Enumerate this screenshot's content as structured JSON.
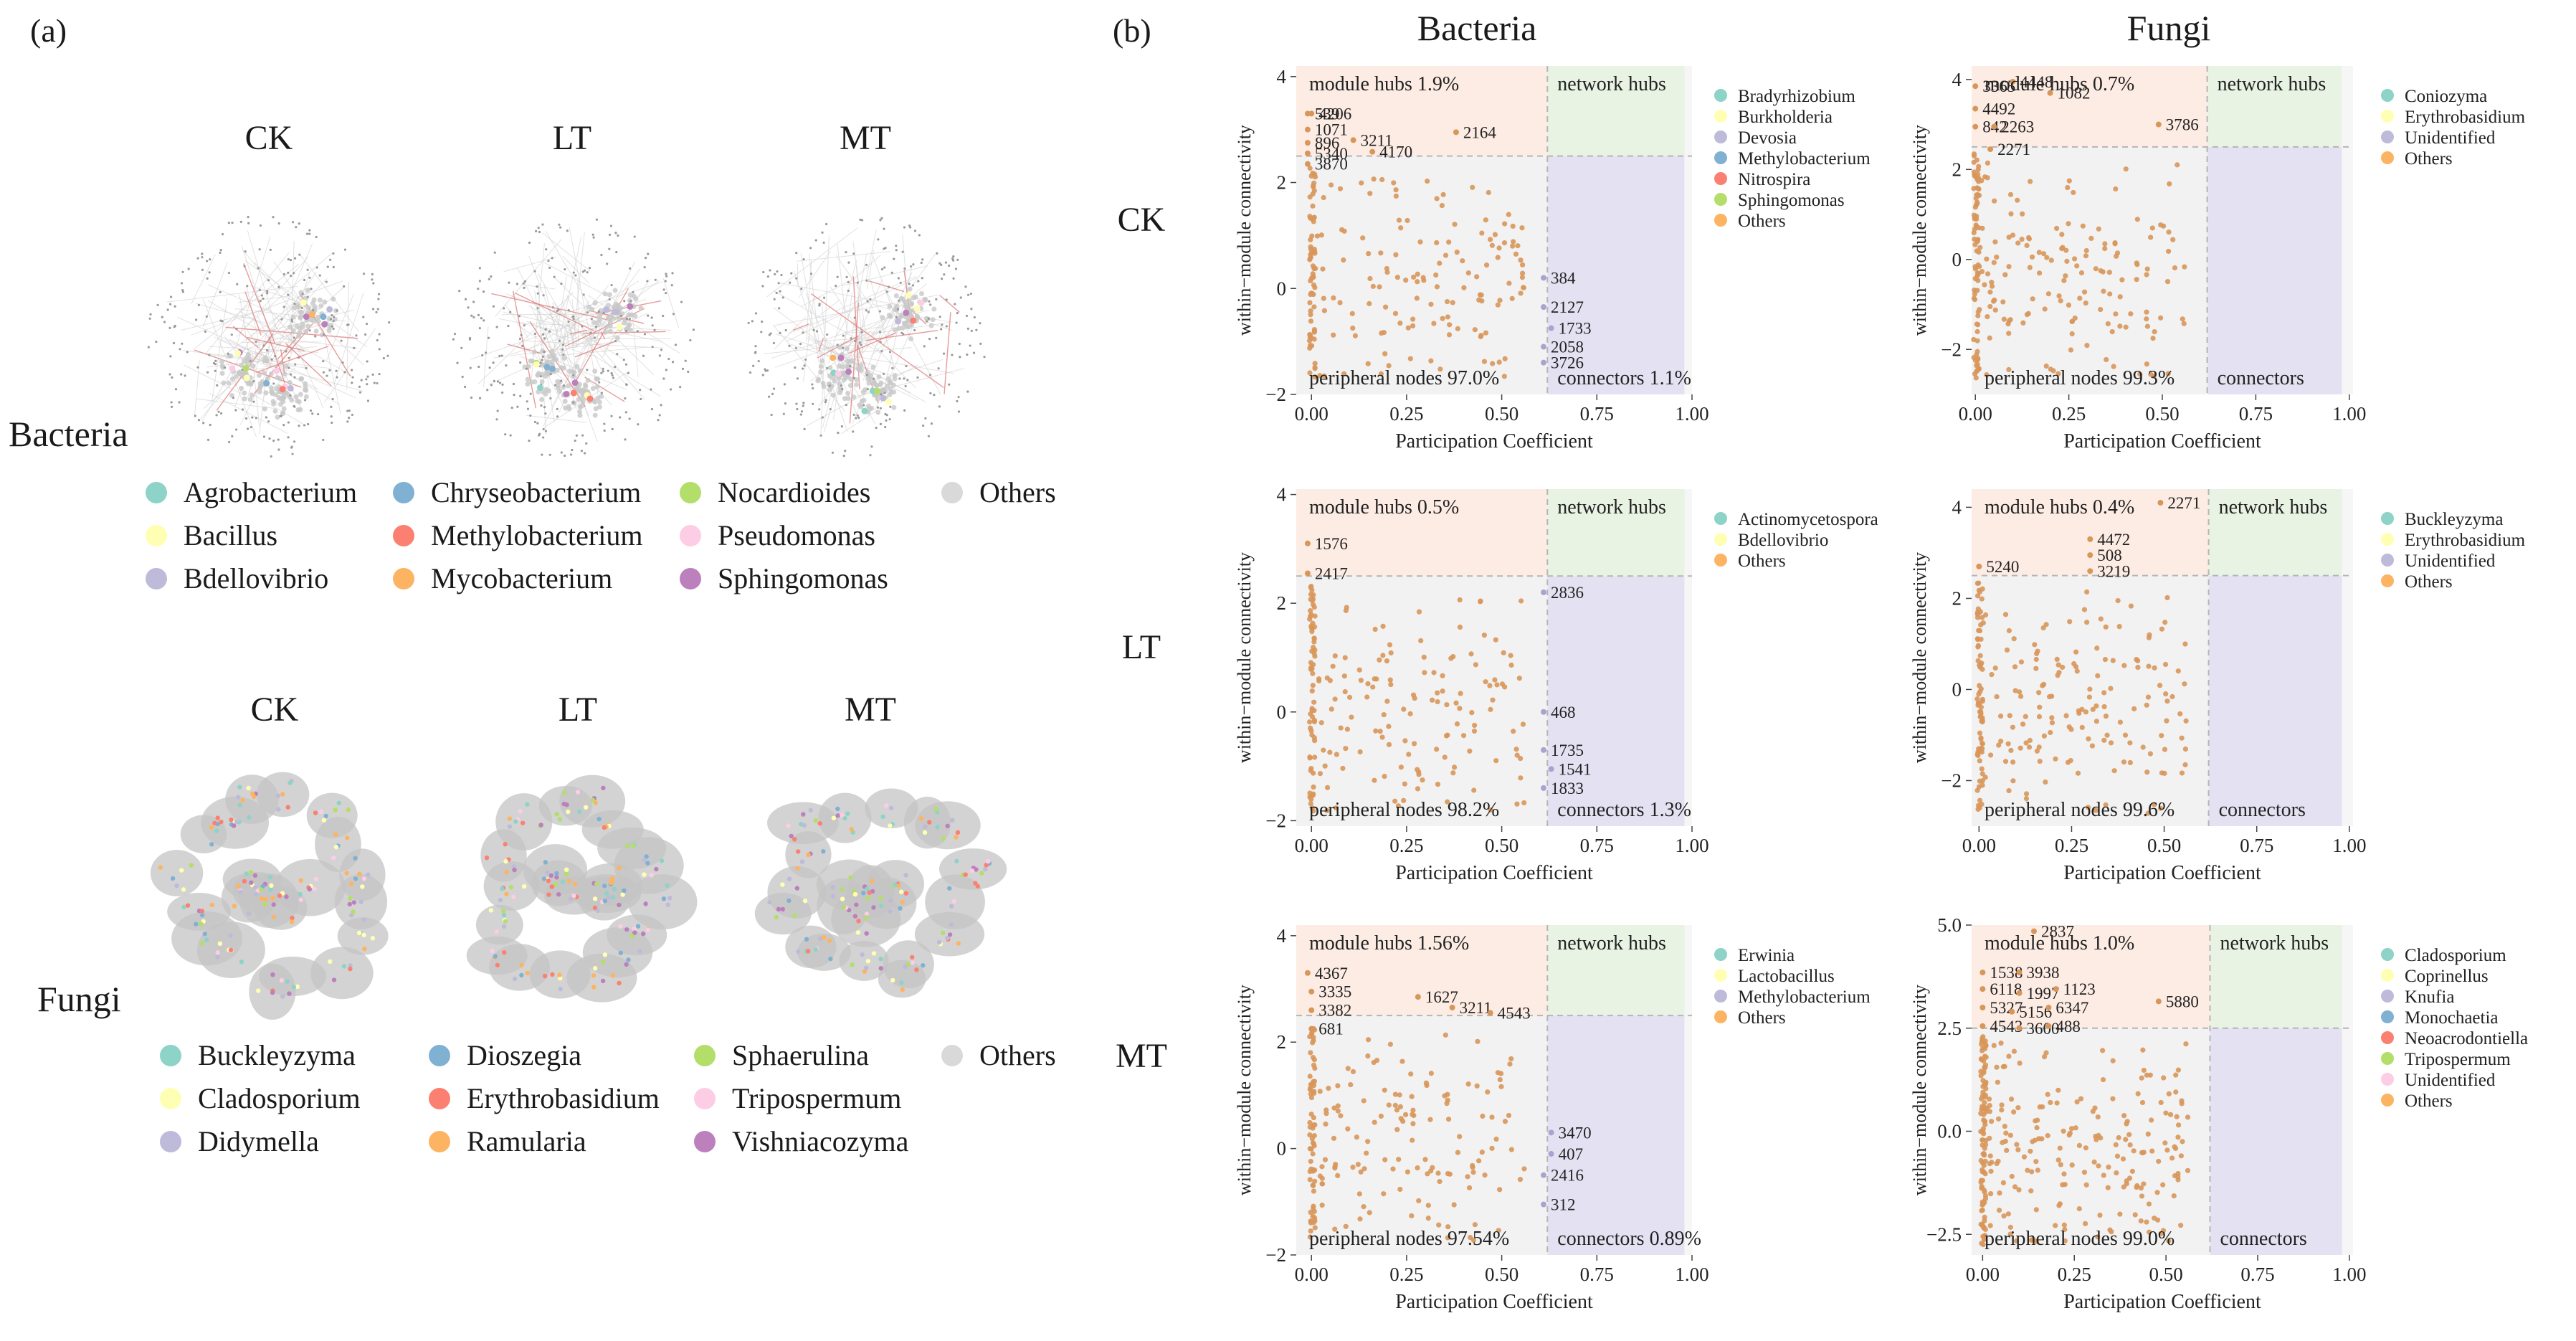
{
  "panel_labels": {
    "a": "(a)",
    "b": "(b)"
  },
  "networks": {
    "bacteria": {
      "title": "Bacteria",
      "treatments": [
        "CK",
        "LT",
        "MT"
      ],
      "legend": [
        "Agrobacterium",
        "Bacillus",
        "Bdellovibrio",
        "Chryseobacterium",
        "Methylobacterium",
        "Mycobacterium",
        "Nocardioides",
        "Pseudomonas",
        "Sphingomonas",
        "Others"
      ],
      "legend_colors": [
        "#8dd3c7",
        "#ffffb3",
        "#bebada",
        "#80b1d3",
        "#fb8072",
        "#fdb462",
        "#b3de69",
        "#fccde5",
        "#bc80bd",
        "#d9d9d9"
      ]
    },
    "fungi": {
      "title": "Fungi",
      "treatments": [
        "CK",
        "LT",
        "MT"
      ],
      "legend": [
        "Buckleyzyma",
        "Cladosporium",
        "Didymella",
        "Dioszegia",
        "Erythrobasidium",
        "Ramularia",
        "Sphaerulina",
        "Tripospermum",
        "Vishniacozyma",
        "Others"
      ],
      "legend_colors": [
        "#8dd3c7",
        "#ffffb3",
        "#bebada",
        "#80b1d3",
        "#fb8072",
        "#fdb462",
        "#b3de69",
        "#fccde5",
        "#bc80bd",
        "#d9d9d9"
      ]
    }
  },
  "columns": [
    "Bacteria",
    "Fungi"
  ],
  "rows": [
    "CK",
    "LT",
    "MT"
  ],
  "chart_data": [
    {
      "type": "scatter",
      "column": "Bacteria",
      "row": "CK",
      "xlabel": "Participation Coefficient",
      "ylabel": "within−module connectivity",
      "xlim": [
        -0.04,
        1.0
      ],
      "ylim": [
        -2,
        4.2
      ],
      "xticks": [
        "0.00",
        "0.25",
        "0.50",
        "0.75",
        "1.00"
      ],
      "xtick_values": [
        0,
        0.25,
        0.5,
        0.75,
        1.0
      ],
      "yticks": [
        "−2",
        "0",
        "2",
        "4"
      ],
      "ytick_values": [
        -2,
        0,
        2,
        4
      ],
      "thresholds": {
        "x": 0.62,
        "y": 2.5
      },
      "quadrants": {
        "module_hubs": "module hubs 1.9%",
        "network_hubs": "network hubs",
        "peripheral": "peripheral nodes 97.0%",
        "connectors": "connectors 1.1%"
      },
      "legend": [
        "Bradyrhizobium",
        "Burkholderia",
        "Devosia",
        "Methylobacterium",
        "Nitrospira",
        "Sphingomonas",
        "Others"
      ],
      "legend_colors": [
        "#8dd3c7",
        "#ffffb3",
        "#bebada",
        "#80b1d3",
        "#fb8072",
        "#b3de69",
        "#fdb462"
      ],
      "labeled_points": [
        {
          "id": "539",
          "x": -0.01,
          "y": 3.3
        },
        {
          "id": "4206",
          "x": 0.0,
          "y": 3.3
        },
        {
          "id": "1071",
          "x": -0.01,
          "y": 3.0
        },
        {
          "id": "896",
          "x": -0.01,
          "y": 2.75
        },
        {
          "id": "5340",
          "x": -0.01,
          "y": 2.55
        },
        {
          "id": "3870",
          "x": -0.01,
          "y": 2.35
        },
        {
          "id": "3211",
          "x": 0.11,
          "y": 2.8
        },
        {
          "id": "4170",
          "x": 0.16,
          "y": 2.58
        },
        {
          "id": "2164",
          "x": 0.38,
          "y": 2.95
        },
        {
          "id": "384",
          "x": 0.61,
          "y": 0.2
        },
        {
          "id": "2127",
          "x": 0.61,
          "y": -0.35
        },
        {
          "id": "1733",
          "x": 0.63,
          "y": -0.75
        },
        {
          "id": "2058",
          "x": 0.61,
          "y": -1.1
        },
        {
          "id": "3726",
          "x": 0.61,
          "y": -1.4
        }
      ],
      "n_background": 200,
      "seed": 11
    },
    {
      "type": "scatter",
      "column": "Fungi",
      "row": "CK",
      "xlabel": "Participation Coefficient",
      "ylabel": "within−module connectivity",
      "xlim": [
        -0.01,
        1.01
      ],
      "ylim": [
        -3.0,
        4.3
      ],
      "xticks": [
        "0.00",
        "0.25",
        "0.50",
        "0.75",
        "1.00"
      ],
      "xtick_values": [
        0,
        0.25,
        0.5,
        0.75,
        1.0
      ],
      "yticks": [
        "−2",
        "0",
        "2",
        "4"
      ],
      "ytick_values": [
        -2,
        0,
        2,
        4
      ],
      "thresholds": {
        "x": 0.62,
        "y": 2.5
      },
      "quadrants": {
        "module_hubs": "module hubs 0.7%",
        "network_hubs": "network hubs",
        "peripheral": "peripheral nodes 99.3%",
        "connectors": "connectors"
      },
      "legend": [
        "Coniozyma",
        "Erythrobasidium",
        "Unidentified",
        "Others"
      ],
      "legend_colors": [
        "#8dd3c7",
        "#ffffb3",
        "#bebada",
        "#fdb462"
      ],
      "labeled_points": [
        {
          "id": "3365",
          "x": 0.0,
          "y": 3.85
        },
        {
          "id": "4448",
          "x": 0.1,
          "y": 3.95
        },
        {
          "id": "1082",
          "x": 0.2,
          "y": 3.7
        },
        {
          "id": "4492",
          "x": 0.0,
          "y": 3.35
        },
        {
          "id": "842",
          "x": 0.0,
          "y": 2.95
        },
        {
          "id": "2263",
          "x": 0.05,
          "y": 2.95
        },
        {
          "id": "2271",
          "x": 0.04,
          "y": 2.45
        },
        {
          "id": "3786",
          "x": 0.49,
          "y": 3.0
        }
      ],
      "n_background": 230,
      "seed": 23
    },
    {
      "type": "scatter",
      "column": "Bacteria",
      "row": "LT",
      "xlabel": "Participation Coefficient",
      "ylabel": "within−module connectivity",
      "xlim": [
        -0.04,
        1.0
      ],
      "ylim": [
        -2.1,
        4.1
      ],
      "xticks": [
        "0.00",
        "0.25",
        "0.50",
        "0.75",
        "1.00"
      ],
      "xtick_values": [
        0,
        0.25,
        0.5,
        0.75,
        1.0
      ],
      "yticks": [
        "−2",
        "0",
        "2",
        "4"
      ],
      "ytick_values": [
        -2,
        0,
        2,
        4
      ],
      "thresholds": {
        "x": 0.62,
        "y": 2.5
      },
      "quadrants": {
        "module_hubs": "module hubs 0.5%",
        "network_hubs": "network hubs",
        "peripheral": "peripheral nodes 98.2%",
        "connectors": "connectors 1.3%"
      },
      "legend": [
        "Actinomycetospora",
        "Bdellovibrio",
        "Others"
      ],
      "legend_colors": [
        "#8dd3c7",
        "#ffffb3",
        "#fdb462"
      ],
      "labeled_points": [
        {
          "id": "1576",
          "x": -0.01,
          "y": 3.1
        },
        {
          "id": "2417",
          "x": -0.01,
          "y": 2.55
        },
        {
          "id": "2836",
          "x": 0.61,
          "y": 2.2
        },
        {
          "id": "468",
          "x": 0.61,
          "y": 0.0
        },
        {
          "id": "1735",
          "x": 0.61,
          "y": -0.7
        },
        {
          "id": "1541",
          "x": 0.63,
          "y": -1.05
        },
        {
          "id": "1833",
          "x": 0.61,
          "y": -1.4
        }
      ],
      "n_background": 200,
      "seed": 37
    },
    {
      "type": "scatter",
      "column": "Fungi",
      "row": "LT",
      "xlabel": "Participation Coefficient",
      "ylabel": "within−module connectivity",
      "xlim": [
        -0.02,
        1.01
      ],
      "ylim": [
        -3.0,
        4.4
      ],
      "xticks": [
        "0.00",
        "0.25",
        "0.50",
        "0.75",
        "1.00"
      ],
      "xtick_values": [
        0,
        0.25,
        0.5,
        0.75,
        1.0
      ],
      "yticks": [
        "−2",
        "0",
        "2",
        "4"
      ],
      "ytick_values": [
        -2,
        0,
        2,
        4
      ],
      "thresholds": {
        "x": 0.62,
        "y": 2.5
      },
      "quadrants": {
        "module_hubs": "module hubs 0.4%",
        "network_hubs": "network hubs",
        "peripheral": "peripheral nodes 99.6%",
        "connectors": "connectors"
      },
      "legend": [
        "Buckleyzyma",
        "Erythrobasidium",
        "Unidentified",
        "Others"
      ],
      "legend_colors": [
        "#8dd3c7",
        "#ffffb3",
        "#bebada",
        "#fdb462"
      ],
      "labeled_points": [
        {
          "id": "2271",
          "x": 0.49,
          "y": 4.1
        },
        {
          "id": "4472",
          "x": 0.3,
          "y": 3.3
        },
        {
          "id": "508",
          "x": 0.3,
          "y": 2.95
        },
        {
          "id": "3219",
          "x": 0.3,
          "y": 2.6
        },
        {
          "id": "5240",
          "x": 0.0,
          "y": 2.7
        }
      ],
      "n_background": 230,
      "seed": 41
    },
    {
      "type": "scatter",
      "column": "Bacteria",
      "row": "MT",
      "xlabel": "Participation Coefficient",
      "ylabel": "within−module connectivity",
      "xlim": [
        -0.04,
        1.0
      ],
      "ylim": [
        -2.0,
        4.2
      ],
      "xticks": [
        "0.00",
        "0.25",
        "0.50",
        "0.75",
        "1.00"
      ],
      "xtick_values": [
        0,
        0.25,
        0.5,
        0.75,
        1.0
      ],
      "yticks": [
        "−2",
        "0",
        "2",
        "4"
      ],
      "ytick_values": [
        -2,
        0,
        2,
        4
      ],
      "thresholds": {
        "x": 0.62,
        "y": 2.5
      },
      "quadrants": {
        "module_hubs": "module hubs 1.56%",
        "network_hubs": "network hubs",
        "peripheral": "peripheral nodes 97.54%",
        "connectors": "connectors 0.89%"
      },
      "legend": [
        "Erwinia",
        "Lactobacillus",
        "Methylobacterium",
        "Others"
      ],
      "legend_colors": [
        "#8dd3c7",
        "#ffffb3",
        "#bebada",
        "#fdb462"
      ],
      "labeled_points": [
        {
          "id": "4367",
          "x": -0.01,
          "y": 3.3
        },
        {
          "id": "3335",
          "x": 0.0,
          "y": 2.95
        },
        {
          "id": "3382",
          "x": 0.0,
          "y": 2.6
        },
        {
          "id": "681",
          "x": 0.0,
          "y": 2.25
        },
        {
          "id": "1627",
          "x": 0.28,
          "y": 2.85
        },
        {
          "id": "3211",
          "x": 0.37,
          "y": 2.65
        },
        {
          "id": "4543",
          "x": 0.47,
          "y": 2.55
        },
        {
          "id": "3470",
          "x": 0.63,
          "y": 0.3
        },
        {
          "id": "407",
          "x": 0.63,
          "y": -0.1
        },
        {
          "id": "2416",
          "x": 0.61,
          "y": -0.5
        },
        {
          "id": "312",
          "x": 0.61,
          "y": -1.05
        }
      ],
      "n_background": 200,
      "seed": 53
    },
    {
      "type": "scatter",
      "column": "Fungi",
      "row": "MT",
      "xlabel": "Participation Coefficient",
      "ylabel": "within−module connectivity",
      "xlim": [
        -0.03,
        1.01
      ],
      "ylim": [
        -3.0,
        5.0
      ],
      "xticks": [
        "0.00",
        "0.25",
        "0.50",
        "0.75",
        "1.00"
      ],
      "xtick_values": [
        0,
        0.25,
        0.5,
        0.75,
        1.0
      ],
      "yticks": [
        "−2.5",
        "0.0",
        "2.5",
        "5.0"
      ],
      "ytick_values": [
        -2.5,
        0,
        2.5,
        5.0
      ],
      "thresholds": {
        "x": 0.62,
        "y": 2.5
      },
      "quadrants": {
        "module_hubs": "module hubs 1.0%",
        "network_hubs": "network hubs",
        "peripheral": "peripheral nodes 99.0%",
        "connectors": "connectors"
      },
      "legend": [
        "Cladosporium",
        "Coprinellus",
        "Knufia",
        "Monochaetia",
        "Neoacrodontiella",
        "Tripospermum",
        "Unidentified",
        "Others"
      ],
      "legend_colors": [
        "#8dd3c7",
        "#ffffb3",
        "#bebada",
        "#80b1d3",
        "#fb8072",
        "#b3de69",
        "#fccde5",
        "#fdb462"
      ],
      "labeled_points": [
        {
          "id": "2837",
          "x": 0.14,
          "y": 4.85
        },
        {
          "id": "1538",
          "x": 0.0,
          "y": 3.85
        },
        {
          "id": "3938",
          "x": 0.1,
          "y": 3.85
        },
        {
          "id": "6118",
          "x": 0.0,
          "y": 3.45
        },
        {
          "id": "1997",
          "x": 0.1,
          "y": 3.35
        },
        {
          "id": "1123",
          "x": 0.2,
          "y": 3.45
        },
        {
          "id": "5327",
          "x": 0.0,
          "y": 3.0
        },
        {
          "id": "5156",
          "x": 0.08,
          "y": 2.9
        },
        {
          "id": "6347",
          "x": 0.18,
          "y": 3.0
        },
        {
          "id": "4543",
          "x": 0.0,
          "y": 2.55
        },
        {
          "id": "3600",
          "x": 0.1,
          "y": 2.5
        },
        {
          "id": "488",
          "x": 0.18,
          "y": 2.55
        },
        {
          "id": "5880",
          "x": 0.48,
          "y": 3.15
        }
      ],
      "n_background": 300,
      "seed": 67
    }
  ]
}
